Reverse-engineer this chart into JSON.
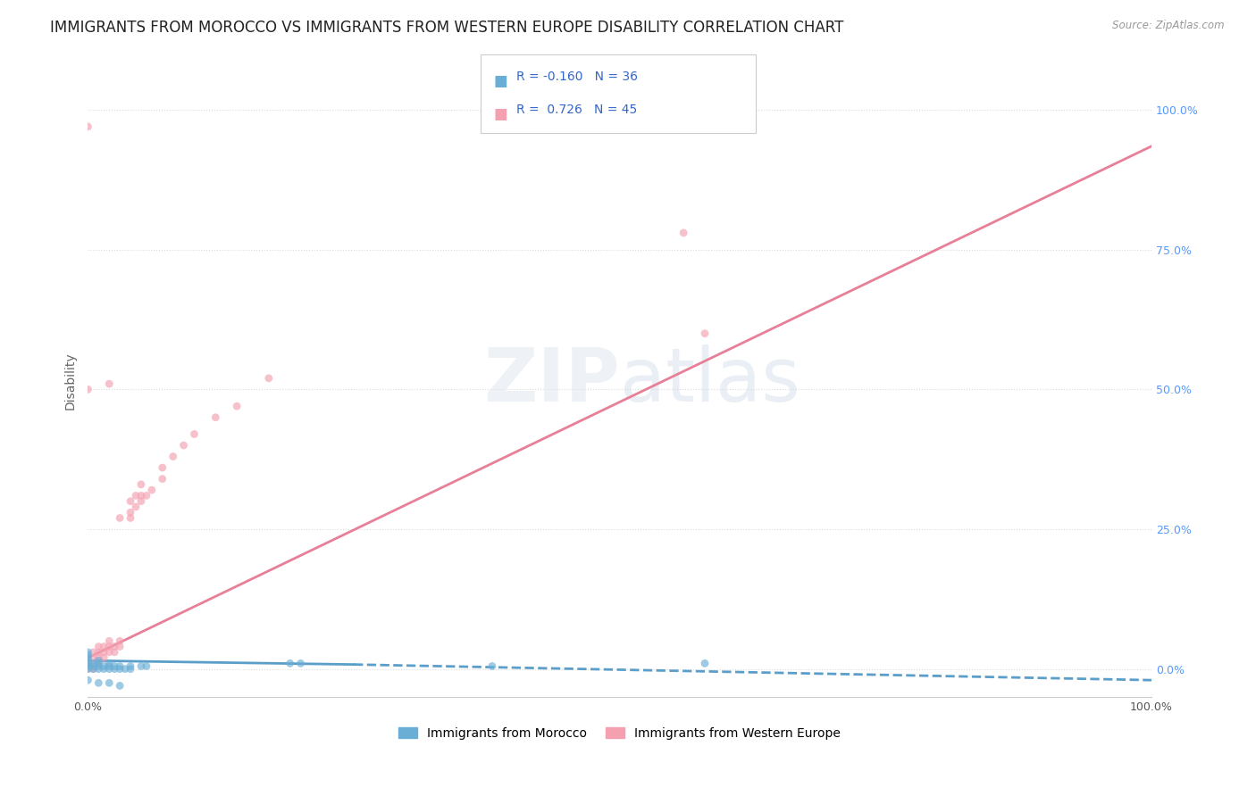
{
  "title": "IMMIGRANTS FROM MOROCCO VS IMMIGRANTS FROM WESTERN EUROPE DISABILITY CORRELATION CHART",
  "source": "Source: ZipAtlas.com",
  "ylabel": "Disability",
  "watermark": "ZIPatlas",
  "morocco_color": "#6aaed6",
  "western_europe_color": "#f4a0b0",
  "morocco_line_color": "#5b9ec9",
  "western_europe_line_color": "#e87f99",
  "morocco_R": -0.16,
  "morocco_N": 36,
  "western_europe_R": 0.726,
  "western_europe_N": 45,
  "xlim": [
    0.0,
    1.0
  ],
  "ylim": [
    -0.05,
    1.08
  ],
  "morocco_scatter": [
    [
      0.0,
      0.0
    ],
    [
      0.0,
      0.005
    ],
    [
      0.0,
      0.01
    ],
    [
      0.0,
      0.015
    ],
    [
      0.0,
      0.02
    ],
    [
      0.0,
      0.025
    ],
    [
      0.0,
      0.03
    ],
    [
      0.005,
      0.0
    ],
    [
      0.005,
      0.005
    ],
    [
      0.005,
      0.01
    ],
    [
      0.01,
      0.0
    ],
    [
      0.01,
      0.005
    ],
    [
      0.01,
      0.01
    ],
    [
      0.01,
      0.015
    ],
    [
      0.015,
      0.0
    ],
    [
      0.015,
      0.005
    ],
    [
      0.02,
      0.0
    ],
    [
      0.02,
      0.005
    ],
    [
      0.02,
      0.01
    ],
    [
      0.025,
      0.0
    ],
    [
      0.025,
      0.005
    ],
    [
      0.03,
      0.0
    ],
    [
      0.03,
      0.005
    ],
    [
      0.035,
      0.0
    ],
    [
      0.04,
      0.0
    ],
    [
      0.04,
      0.005
    ],
    [
      0.05,
      0.005
    ],
    [
      0.055,
      0.005
    ],
    [
      0.19,
      0.01
    ],
    [
      0.2,
      0.01
    ],
    [
      0.38,
      0.005
    ],
    [
      0.58,
      0.01
    ],
    [
      0.0,
      -0.02
    ],
    [
      0.01,
      -0.025
    ],
    [
      0.02,
      -0.025
    ],
    [
      0.03,
      -0.03
    ]
  ],
  "western_europe_scatter": [
    [
      0.0,
      0.0
    ],
    [
      0.0,
      0.005
    ],
    [
      0.0,
      0.01
    ],
    [
      0.005,
      0.0
    ],
    [
      0.005,
      0.01
    ],
    [
      0.005,
      0.02
    ],
    [
      0.005,
      0.03
    ],
    [
      0.01,
      0.01
    ],
    [
      0.01,
      0.02
    ],
    [
      0.01,
      0.03
    ],
    [
      0.01,
      0.04
    ],
    [
      0.015,
      0.02
    ],
    [
      0.015,
      0.03
    ],
    [
      0.015,
      0.04
    ],
    [
      0.02,
      0.03
    ],
    [
      0.02,
      0.04
    ],
    [
      0.02,
      0.05
    ],
    [
      0.025,
      0.03
    ],
    [
      0.025,
      0.04
    ],
    [
      0.03,
      0.04
    ],
    [
      0.03,
      0.05
    ],
    [
      0.03,
      0.27
    ],
    [
      0.04,
      0.27
    ],
    [
      0.04,
      0.28
    ],
    [
      0.04,
      0.3
    ],
    [
      0.045,
      0.29
    ],
    [
      0.045,
      0.31
    ],
    [
      0.05,
      0.3
    ],
    [
      0.05,
      0.31
    ],
    [
      0.05,
      0.33
    ],
    [
      0.055,
      0.31
    ],
    [
      0.06,
      0.32
    ],
    [
      0.07,
      0.34
    ],
    [
      0.07,
      0.36
    ],
    [
      0.08,
      0.38
    ],
    [
      0.09,
      0.4
    ],
    [
      0.1,
      0.42
    ],
    [
      0.12,
      0.45
    ],
    [
      0.14,
      0.47
    ],
    [
      0.17,
      0.52
    ],
    [
      0.02,
      0.51
    ],
    [
      0.56,
      0.78
    ],
    [
      0.0,
      0.97
    ],
    [
      0.58,
      0.6
    ],
    [
      0.0,
      0.5
    ]
  ],
  "background_color": "#ffffff",
  "grid_color": "#d8d8d8",
  "title_fontsize": 12,
  "axis_label_fontsize": 10,
  "tick_fontsize": 9,
  "scatter_size": 40,
  "scatter_alpha": 0.65,
  "line_width": 2.0
}
